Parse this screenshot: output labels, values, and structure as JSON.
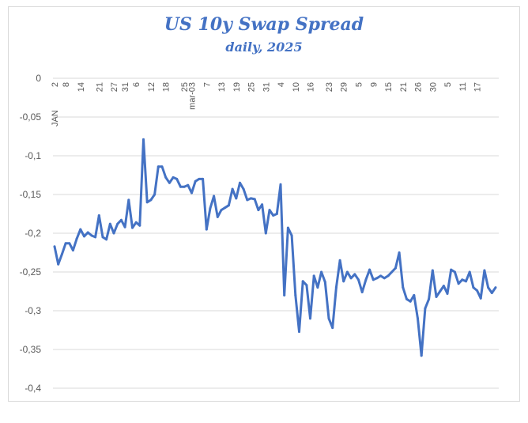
{
  "chart_data": {
    "type": "line",
    "title": "US 10y Swap Spread",
    "subtitle": "daily, 2025",
    "xlabel": "",
    "ylabel": "",
    "ylim": [
      -0.4,
      0
    ],
    "yticks": [
      "0",
      "-0,05",
      "-0,1",
      "-0,15",
      "-0,2",
      "-0,25",
      "-0,3",
      "-0,35",
      "-0,4"
    ],
    "ytick_values": [
      0,
      -0.05,
      -0.1,
      -0.15,
      -0.2,
      -0.25,
      -0.3,
      -0.35,
      -0.4
    ],
    "grid": true,
    "legend": "none",
    "series_color": "#4472c4",
    "x_tick_labels": [
      {
        "i": 0,
        "label": "2"
      },
      {
        "i": 3,
        "label": "JAN"
      },
      {
        "i": 3,
        "label": "8"
      },
      {
        "i": 7,
        "label": "14"
      },
      {
        "i": 12,
        "label": "21"
      },
      {
        "i": 16,
        "label": "27"
      },
      {
        "i": 19,
        "label": "31"
      },
      {
        "i": 22,
        "label": "6"
      },
      {
        "i": 26,
        "label": "12"
      },
      {
        "i": 30,
        "label": "18"
      },
      {
        "i": 35,
        "label": "25"
      },
      {
        "i": 37,
        "label": "mar-03"
      },
      {
        "i": 41,
        "label": "7"
      },
      {
        "i": 45,
        "label": "13"
      },
      {
        "i": 49,
        "label": "19"
      },
      {
        "i": 53,
        "label": "25"
      },
      {
        "i": 57,
        "label": "31"
      },
      {
        "i": 61,
        "label": "4"
      },
      {
        "i": 65,
        "label": "10"
      },
      {
        "i": 69,
        "label": "16"
      },
      {
        "i": 74,
        "label": "23"
      },
      {
        "i": 78,
        "label": "29"
      },
      {
        "i": 82,
        "label": "5"
      },
      {
        "i": 86,
        "label": "9"
      },
      {
        "i": 90,
        "label": "15"
      },
      {
        "i": 94,
        "label": "21"
      },
      {
        "i": 98,
        "label": "26"
      },
      {
        "i": 102,
        "label": "30"
      },
      {
        "i": 106,
        "label": "5"
      },
      {
        "i": 110,
        "label": "11"
      },
      {
        "i": 114,
        "label": "17"
      }
    ],
    "series": [
      {
        "values": [
          -0.217,
          -0.24,
          -0.227,
          -0.213,
          -0.213,
          -0.222,
          -0.207,
          -0.195,
          -0.204,
          -0.199,
          -0.203,
          -0.205,
          -0.177,
          -0.205,
          -0.208,
          -0.188,
          -0.2,
          -0.188,
          -0.183,
          -0.192,
          -0.157,
          -0.193,
          -0.186,
          -0.19,
          -0.079,
          -0.16,
          -0.157,
          -0.15,
          -0.114,
          -0.114,
          -0.128,
          -0.135,
          -0.128,
          -0.13,
          -0.14,
          -0.14,
          -0.138,
          -0.148,
          -0.133,
          -0.13,
          -0.13,
          -0.195,
          -0.168,
          -0.152,
          -0.179,
          -0.17,
          -0.167,
          -0.164,
          -0.143,
          -0.155,
          -0.135,
          -0.143,
          -0.157,
          -0.155,
          -0.156,
          -0.17,
          -0.163,
          -0.2,
          -0.17,
          -0.177,
          -0.175,
          -0.137,
          -0.28,
          -0.193,
          -0.203,
          -0.28,
          -0.327,
          -0.262,
          -0.267,
          -0.31,
          -0.255,
          -0.27,
          -0.25,
          -0.263,
          -0.31,
          -0.322,
          -0.27,
          -0.235,
          -0.262,
          -0.25,
          -0.258,
          -0.253,
          -0.26,
          -0.276,
          -0.26,
          -0.247,
          -0.26,
          -0.258,
          -0.255,
          -0.258,
          -0.255,
          -0.25,
          -0.245,
          -0.225,
          -0.27,
          -0.285,
          -0.288,
          -0.28,
          -0.31,
          -0.358,
          -0.297,
          -0.285,
          -0.248,
          -0.282,
          -0.275,
          -0.268,
          -0.278,
          -0.247,
          -0.25,
          -0.265,
          -0.26,
          -0.262,
          -0.25,
          -0.27,
          -0.274,
          -0.284,
          -0.248,
          -0.27,
          -0.277,
          -0.27
        ]
      }
    ]
  }
}
